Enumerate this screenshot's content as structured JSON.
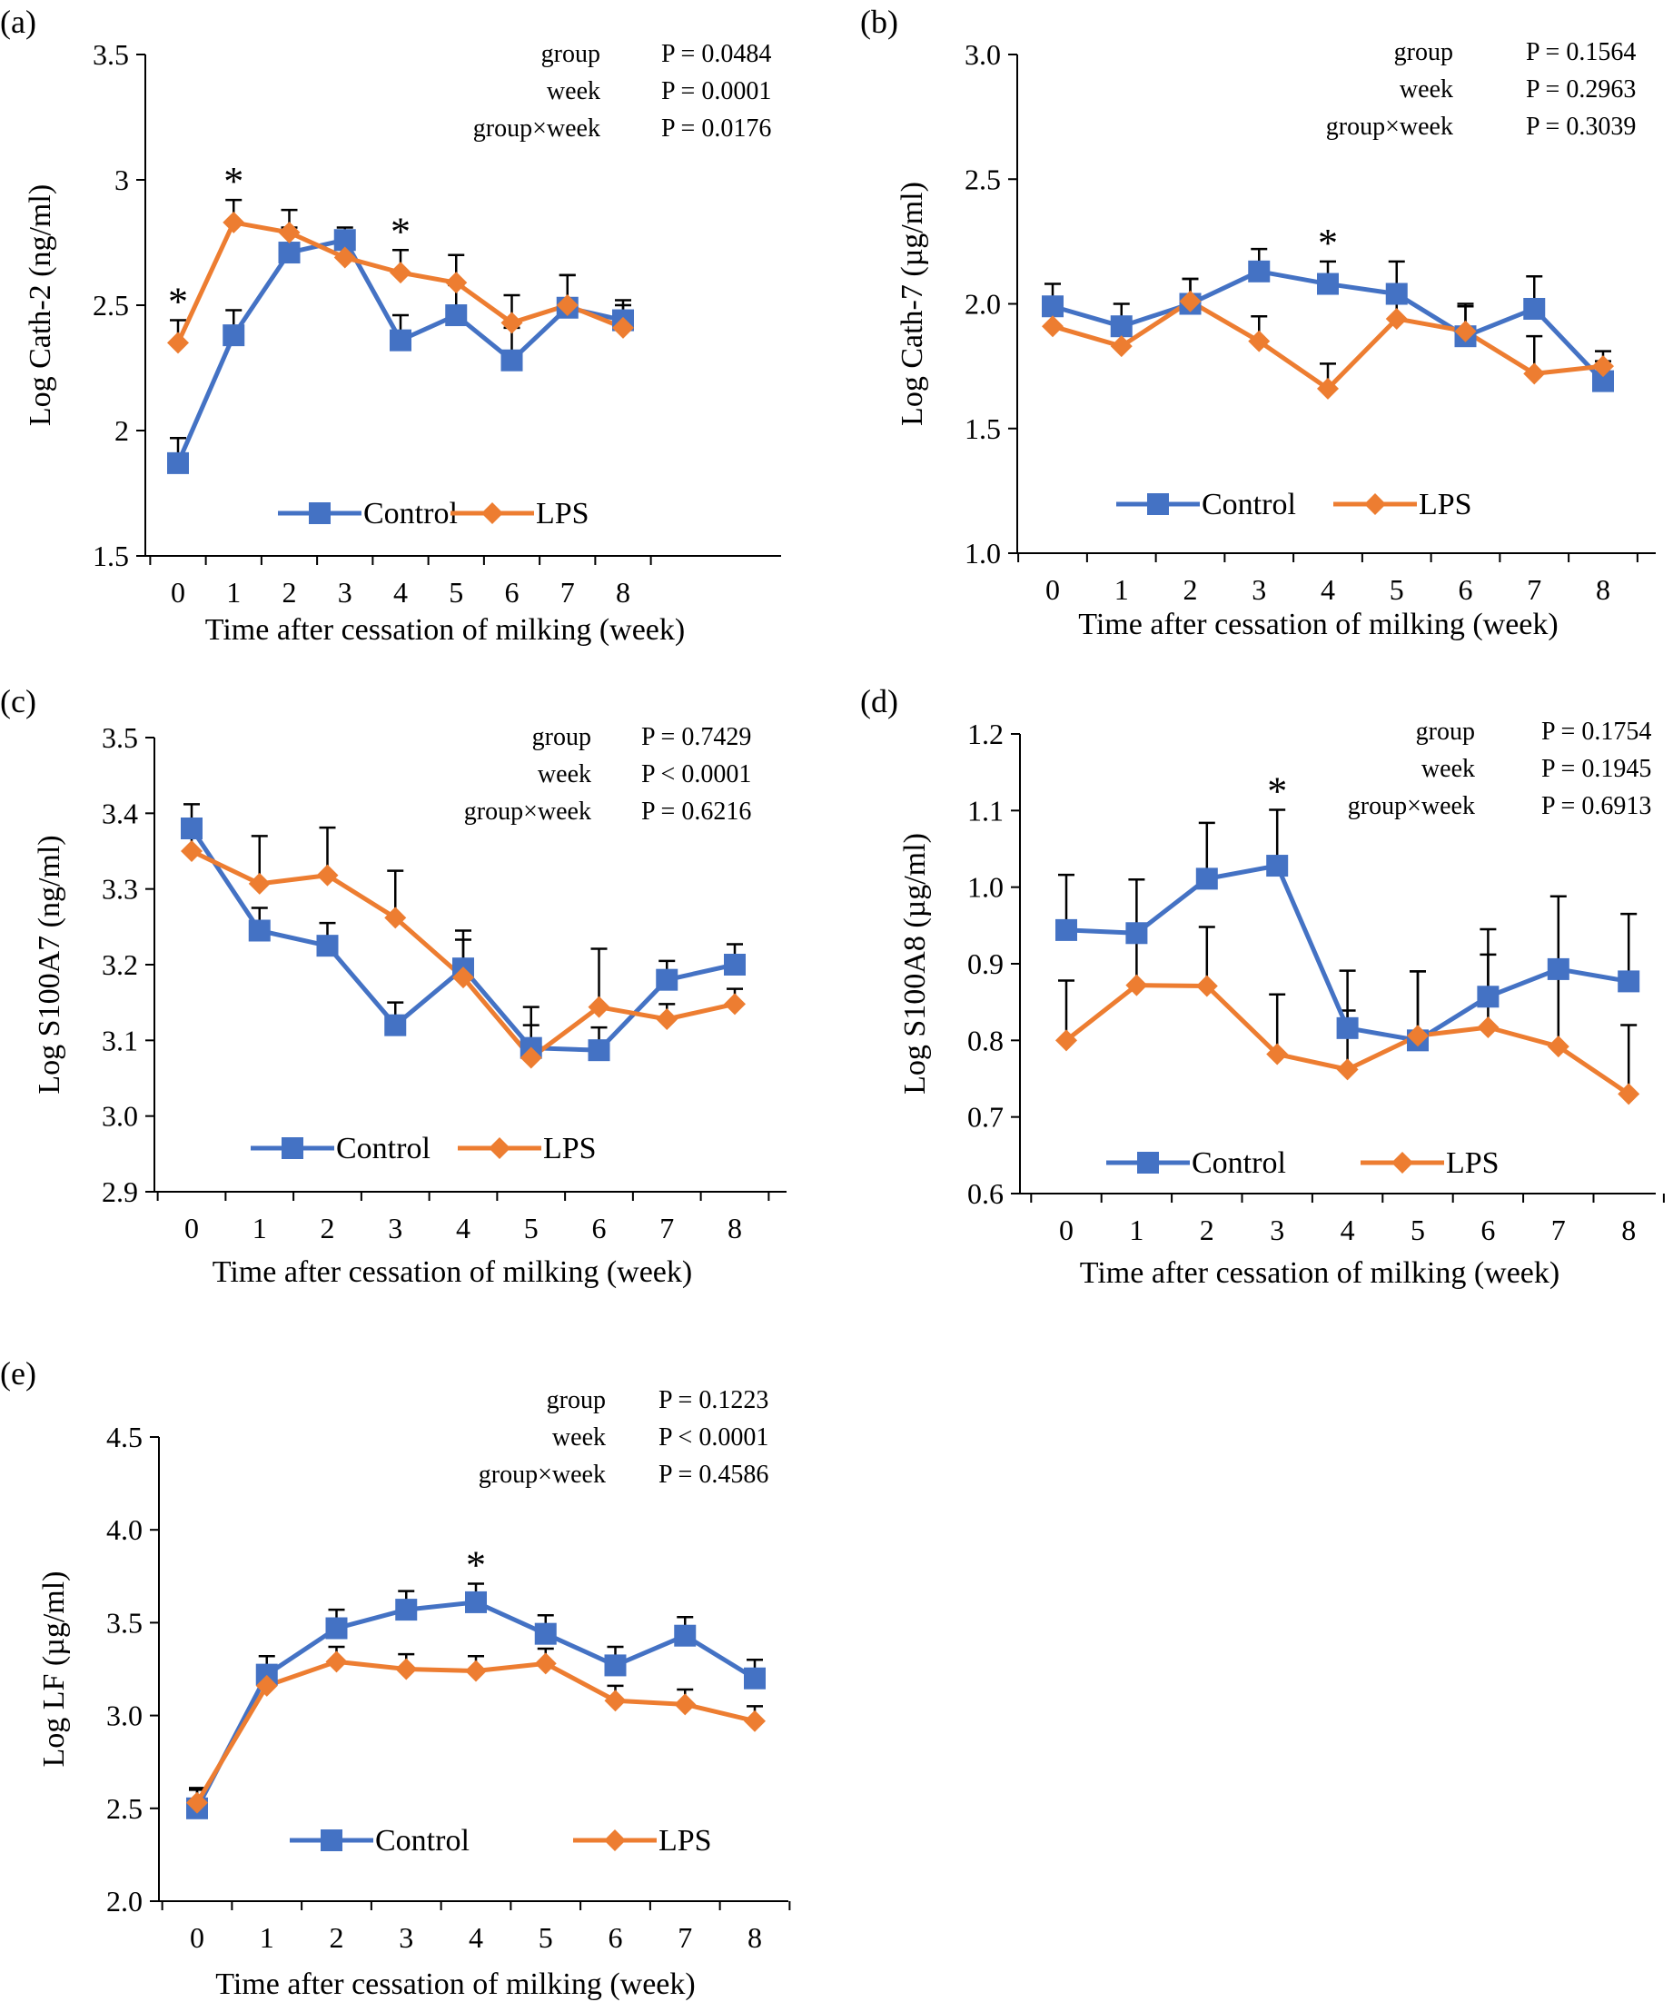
{
  "colors": {
    "control": "#4472C4",
    "lps": "#ED7D31",
    "axis": "#000000"
  },
  "legend_labels": [
    "Control",
    "LPS"
  ],
  "stats_labels": [
    "group",
    "week",
    "group×week"
  ],
  "chart_data": [
    {
      "panel": "(a)",
      "type": "line",
      "ylabel": "Log Cath-2 (ng/ml)",
      "xlabel": "Time after cessation of milking (week)",
      "categories": [
        "0",
        "1",
        "2",
        "3",
        "4",
        "5",
        "6",
        "7",
        "8"
      ],
      "ylim": [
        1.5,
        3.5
      ],
      "yticks": [
        "1.5",
        "2",
        "2.5",
        "3",
        "3.5"
      ],
      "series": [
        {
          "name": "Control",
          "marker": "square",
          "values": [
            1.87,
            2.38,
            2.71,
            2.76,
            2.36,
            2.46,
            2.28,
            2.49,
            2.44
          ],
          "err": [
            0.1,
            0.1,
            0.1,
            0.05,
            0.1,
            0.12,
            0.13,
            0.13,
            0.08
          ]
        },
        {
          "name": "LPS",
          "marker": "diamond",
          "values": [
            2.35,
            2.83,
            2.79,
            2.69,
            2.63,
            2.59,
            2.43,
            2.5,
            2.41
          ],
          "err": [
            0.09,
            0.09,
            0.09,
            0.05,
            0.09,
            0.11,
            0.11,
            0.12,
            0.09
          ]
        }
      ],
      "significant": [
        "0",
        "1",
        "4"
      ],
      "stats": [
        "P = 0.0484",
        "P = 0.0001",
        "P = 0.0176"
      ]
    },
    {
      "panel": "(b)",
      "type": "line",
      "ylabel": "Log Cath-7 (µg/ml)",
      "xlabel": "Time after cessation of milking (week)",
      "categories": [
        "0",
        "1",
        "2",
        "3",
        "4",
        "5",
        "6",
        "7",
        "8"
      ],
      "ylim": [
        1.0,
        3.0
      ],
      "yticks": [
        "1.0",
        "1.5",
        "2.0",
        "2.5",
        "3.0"
      ],
      "series": [
        {
          "name": "Control",
          "marker": "square",
          "values": [
            1.99,
            1.91,
            2.0,
            2.13,
            2.08,
            2.04,
            1.87,
            1.98,
            1.69
          ],
          "err": [
            0.09,
            0.09,
            0.1,
            0.09,
            0.09,
            0.13,
            0.12,
            0.13,
            0.08
          ]
        },
        {
          "name": "LPS",
          "marker": "diamond",
          "values": [
            1.91,
            1.83,
            2.01,
            1.85,
            1.66,
            1.94,
            1.89,
            1.72,
            1.75
          ],
          "err": [
            0.1,
            0.1,
            0.09,
            0.1,
            0.1,
            0.12,
            0.11,
            0.15,
            0.06
          ]
        }
      ],
      "significant": [
        "4"
      ],
      "stats": [
        "P = 0.1564",
        "P = 0.2963",
        "P = 0.3039"
      ]
    },
    {
      "panel": "(c)",
      "type": "line",
      "ylabel": "Log S100A7 (ng/ml)",
      "xlabel": "Time after cessation of milking (week)",
      "categories": [
        "0",
        "1",
        "2",
        "3",
        "4",
        "5",
        "6",
        "7",
        "8"
      ],
      "ylim": [
        2.9,
        3.5
      ],
      "yticks": [
        "2.9",
        "3.0",
        "3.1",
        "3.2",
        "3.3",
        "3.4",
        "3.5"
      ],
      "series": [
        {
          "name": "Control",
          "marker": "square",
          "values": [
            3.38,
            3.245,
            3.225,
            3.12,
            3.195,
            3.09,
            3.087,
            3.18,
            3.2
          ],
          "err": [
            0.032,
            0.03,
            0.03,
            0.03,
            0.05,
            0.03,
            0.03,
            0.025,
            0.027
          ]
        },
        {
          "name": "LPS",
          "marker": "diamond",
          "values": [
            3.35,
            3.307,
            3.318,
            3.262,
            3.183,
            3.077,
            3.144,
            3.128,
            3.148
          ],
          "err": [
            0.03,
            0.063,
            0.063,
            0.062,
            0.05,
            0.067,
            0.077,
            0.02,
            0.02
          ]
        }
      ],
      "significant": [],
      "stats": [
        "P = 0.7429",
        "P < 0.0001",
        "P = 0.6216"
      ]
    },
    {
      "panel": "(d)",
      "type": "line",
      "ylabel": "Log S100A8 (µg/ml)",
      "xlabel": "Time after cessation of milking (week)",
      "categories": [
        "0",
        "1",
        "2",
        "3",
        "4",
        "5",
        "6",
        "7",
        "8"
      ],
      "ylim": [
        0.6,
        1.2
      ],
      "yticks": [
        "0.6",
        "0.7",
        "0.8",
        "0.9",
        "1.0",
        "1.1",
        "1.2"
      ],
      "series": [
        {
          "name": "Control",
          "marker": "square",
          "values": [
            0.944,
            0.94,
            1.011,
            1.028,
            0.816,
            0.8,
            0.857,
            0.893,
            0.877
          ],
          "err": [
            0.072,
            0.07,
            0.073,
            0.073,
            0.075,
            0.09,
            0.088,
            0.095,
            0.088
          ]
        },
        {
          "name": "LPS",
          "marker": "diamond",
          "values": [
            0.8,
            0.872,
            0.871,
            0.782,
            0.762,
            0.806,
            0.817,
            0.792,
            0.73
          ],
          "err": [
            0.078,
            0.075,
            0.077,
            0.078,
            0.077,
            0.084,
            0.095,
            0.09,
            0.09
          ]
        }
      ],
      "significant": [
        "3"
      ],
      "stats": [
        "P = 0.1754",
        "P = 0.1945",
        "P = 0.6913"
      ]
    },
    {
      "panel": "(e)",
      "type": "line",
      "ylabel": "Log LF (µg/ml)",
      "xlabel": "Time after cessation of milking (week)",
      "categories": [
        "0",
        "1",
        "2",
        "3",
        "4",
        "5",
        "6",
        "7",
        "8"
      ],
      "ylim": [
        2.0,
        4.5
      ],
      "yticks": [
        "2.0",
        "2.5",
        "3.0",
        "3.5",
        "4.0",
        "4.5"
      ],
      "series": [
        {
          "name": "Control",
          "marker": "square",
          "values": [
            2.5,
            3.22,
            3.47,
            3.57,
            3.61,
            3.44,
            3.27,
            3.43,
            3.2
          ],
          "err": [
            0.1,
            0.1,
            0.1,
            0.1,
            0.1,
            0.1,
            0.1,
            0.1,
            0.1
          ]
        },
        {
          "name": "LPS",
          "marker": "diamond",
          "values": [
            2.53,
            3.16,
            3.29,
            3.25,
            3.24,
            3.28,
            3.08,
            3.06,
            2.97
          ],
          "err": [
            0.08,
            0.08,
            0.08,
            0.08,
            0.08,
            0.08,
            0.08,
            0.08,
            0.08
          ]
        }
      ],
      "significant": [
        "4"
      ],
      "stats": [
        "P = 0.1223",
        "P < 0.0001",
        "P = 0.4586"
      ]
    }
  ]
}
